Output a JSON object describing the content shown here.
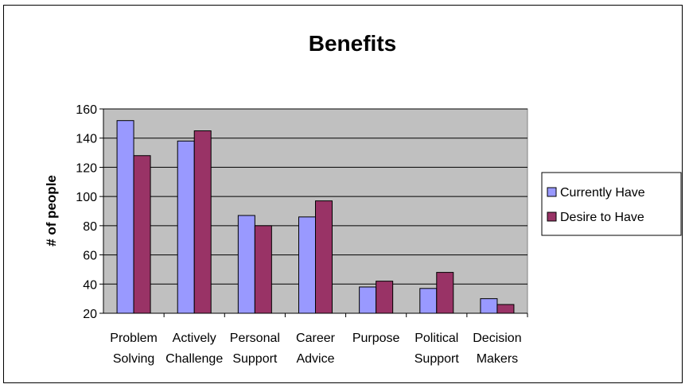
{
  "chart_data": {
    "type": "bar",
    "title": "Benefits",
    "xlabel": "",
    "ylabel": "# of people",
    "ylim": [
      20,
      160
    ],
    "yticks": [
      20,
      40,
      60,
      80,
      100,
      120,
      140,
      160
    ],
    "grid": true,
    "legend_position": "right",
    "categories": [
      [
        "Problem",
        "Solving"
      ],
      [
        "Actively",
        "Challenge"
      ],
      [
        "Personal",
        "Support"
      ],
      [
        "Career",
        "Advice"
      ],
      [
        "Purpose"
      ],
      [
        "Political",
        "Support"
      ],
      [
        "Decision",
        "Makers"
      ]
    ],
    "series": [
      {
        "name": "Currently Have",
        "color": "#9999ff",
        "values": [
          152,
          138,
          87,
          86,
          38,
          37,
          30
        ]
      },
      {
        "name": "Desire to Have",
        "color": "#993366",
        "values": [
          128,
          145,
          80,
          97,
          42,
          48,
          26
        ]
      }
    ],
    "plot_background": "#c0c0c0"
  }
}
